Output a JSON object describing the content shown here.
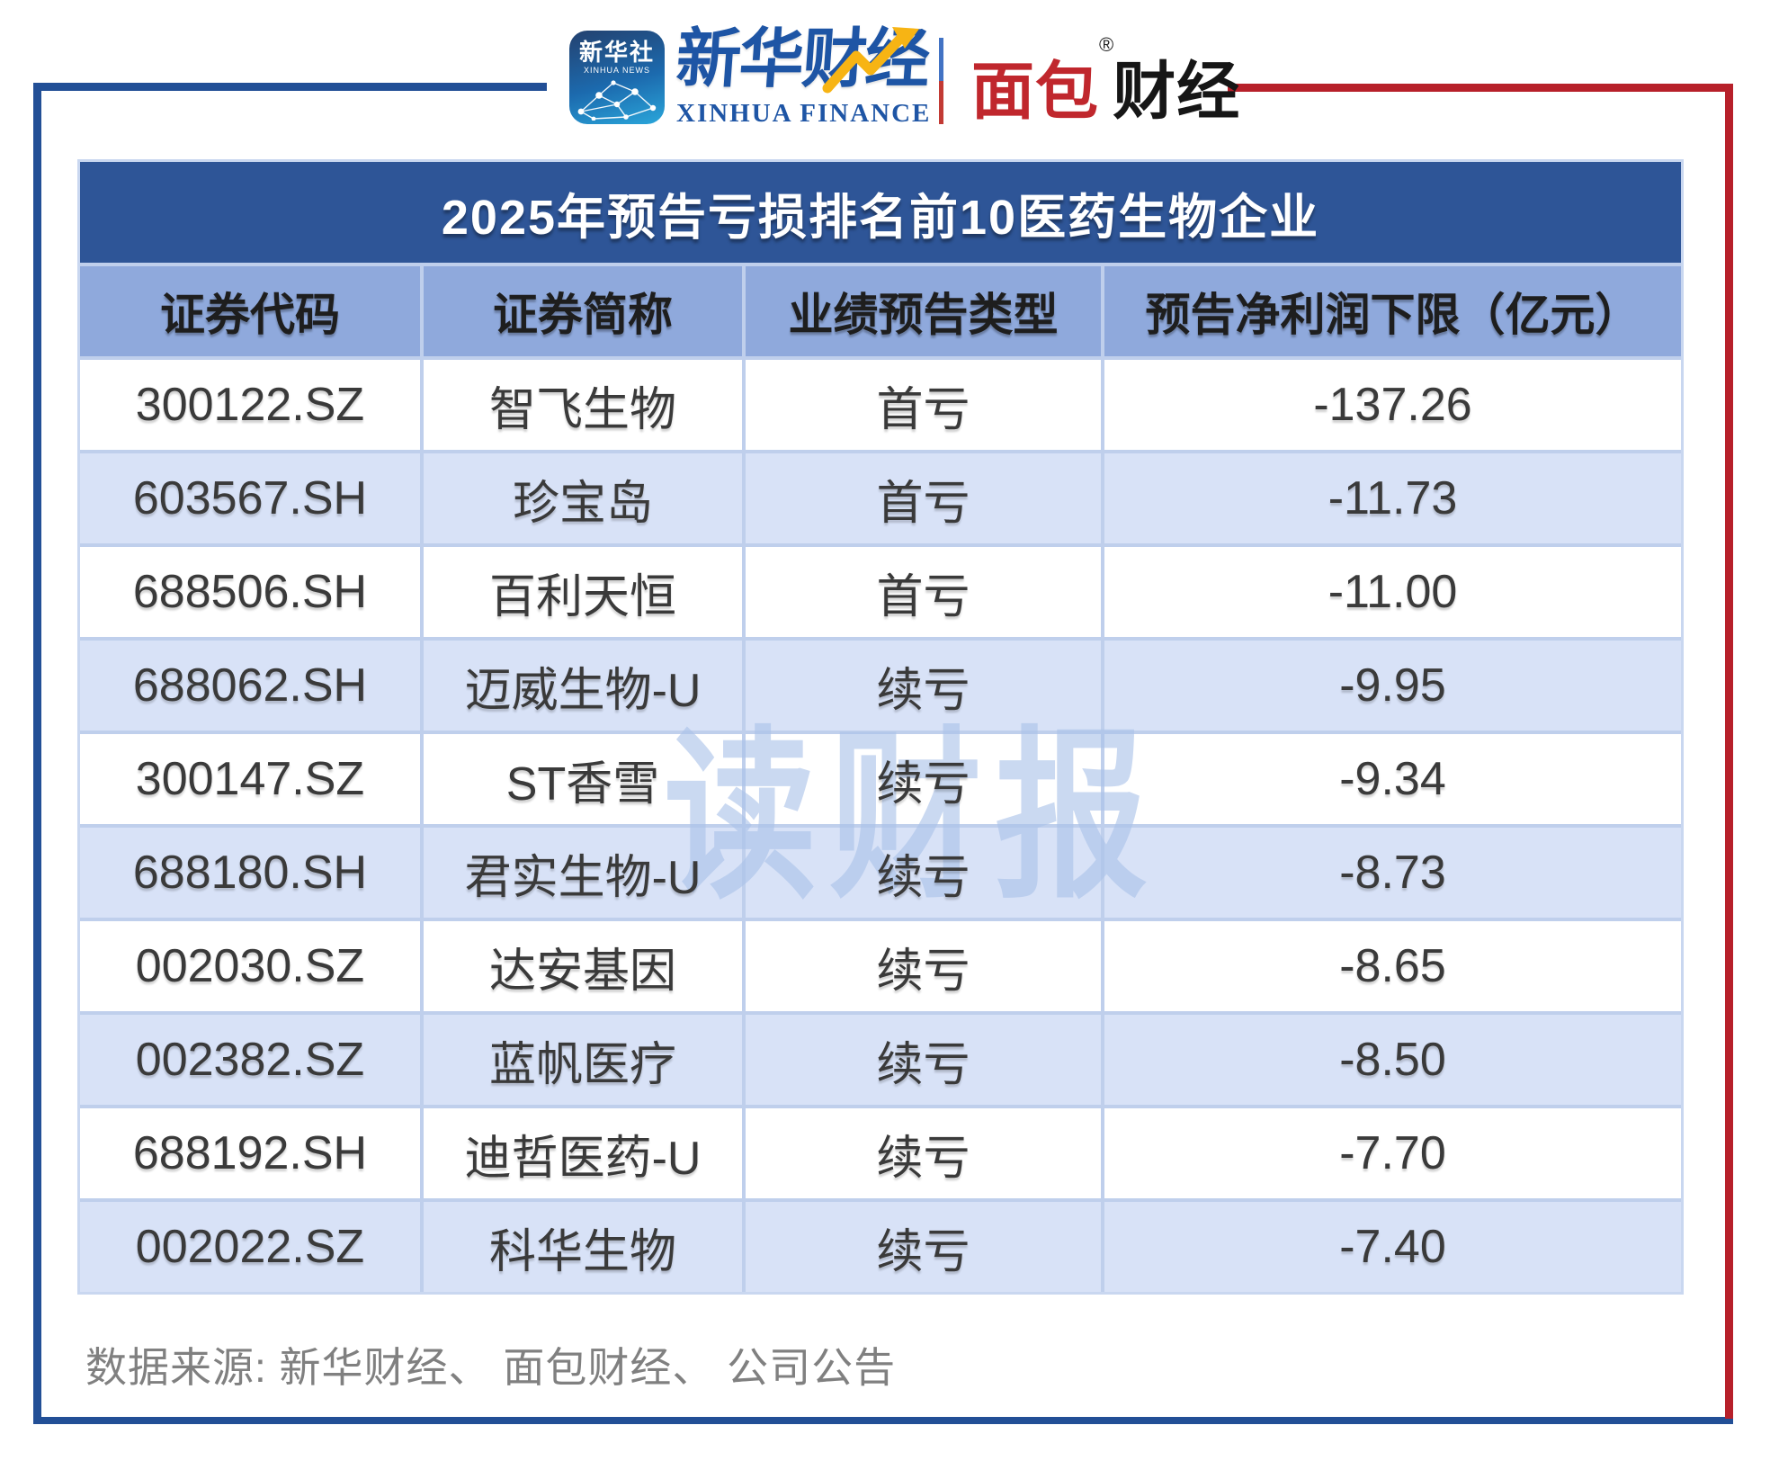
{
  "brand": {
    "xinhua_news": {
      "cn": "新华社",
      "en": "XINHUA NEWS"
    },
    "xinhua_finance": {
      "cn": "新华财经",
      "en": "XINHUA FINANCE"
    },
    "bread_finance": {
      "part_red": "面包",
      "reg_mark": "®",
      "part_black": "财经"
    }
  },
  "chart_data": {
    "type": "table",
    "title": "2025年预告亏损排名前10医药生物企业",
    "columns": [
      "证券代码",
      "证券简称",
      "业绩预告类型",
      "预告净利润下限（亿元）"
    ],
    "rows": [
      [
        "300122.SZ",
        "智飞生物",
        "首亏",
        "-137.26"
      ],
      [
        "603567.SH",
        "珍宝岛",
        "首亏",
        "-11.73"
      ],
      [
        "688506.SH",
        "百利天恒",
        "首亏",
        "-11.00"
      ],
      [
        "688062.SH",
        "迈威生物-U",
        "续亏",
        "-9.95"
      ],
      [
        "300147.SZ",
        "ST香雪",
        "续亏",
        "-9.34"
      ],
      [
        "688180.SH",
        "君实生物-U",
        "续亏",
        "-8.73"
      ],
      [
        "002030.SZ",
        "达安基因",
        "续亏",
        "-8.65"
      ],
      [
        "002382.SZ",
        "蓝帆医疗",
        "续亏",
        "-8.50"
      ],
      [
        "688192.SH",
        "迪哲医药-U",
        "续亏",
        "-7.70"
      ],
      [
        "002022.SZ",
        "科华生物",
        "续亏",
        "-7.40"
      ]
    ],
    "source_note": "数据来源: 新华财经、 面包财经、 公司公告"
  },
  "watermark": "读财报",
  "colors": {
    "title_bar": "#2E5597",
    "header_row": "#8FA9DC",
    "alt_row": "#D8E2F7",
    "grid_line": "#BFCFEC",
    "frame_blue": "#224F96",
    "frame_red": "#B7202A",
    "text_dark": "#3A3A3A",
    "footer_gray": "#808080",
    "brand_blue": "#1E55A5",
    "brand_red": "#C0272D",
    "arrow_yellow": "#F7B414",
    "watermark_blue": "#AAC2E9"
  }
}
